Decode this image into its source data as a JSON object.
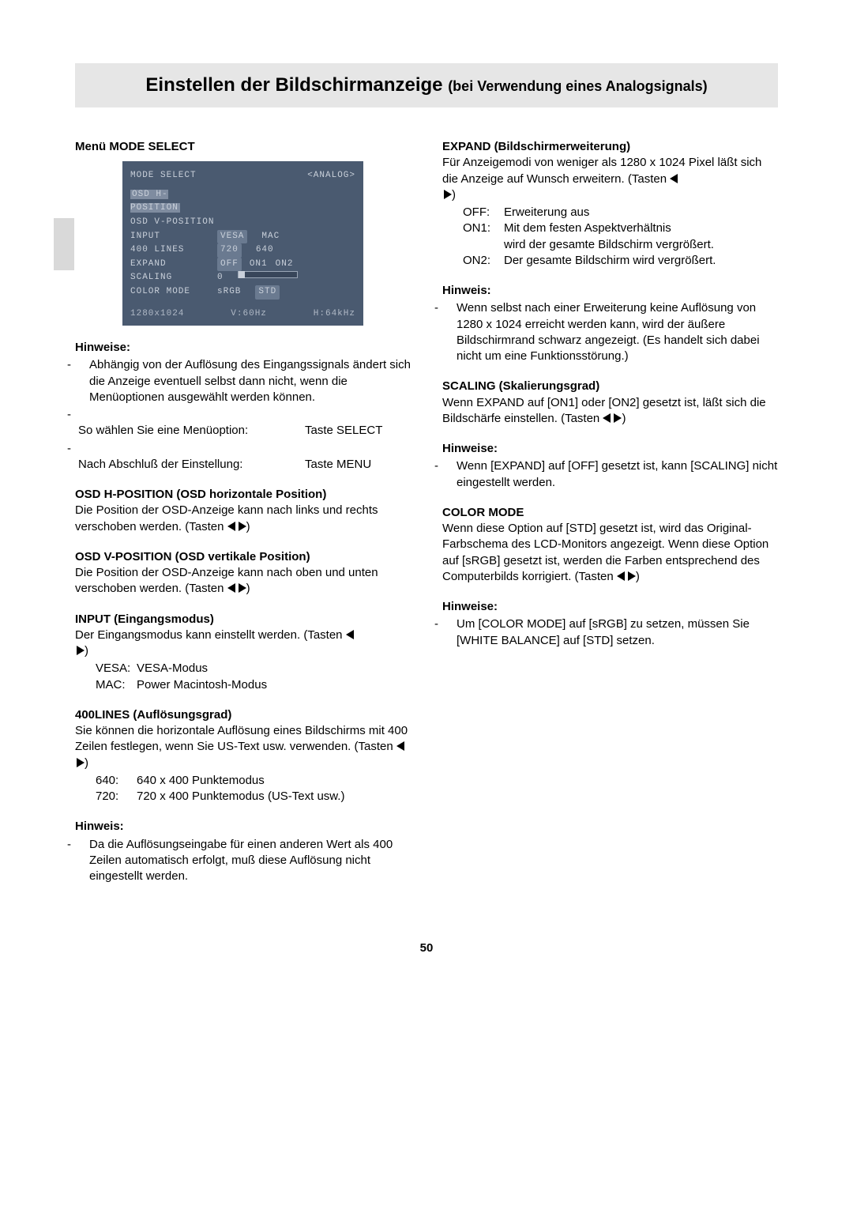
{
  "title": {
    "main": "Einstellen der Bildschirmanzeige ",
    "sub": "(bei Verwendung eines Analogsignals)"
  },
  "osd": {
    "title": "MODE SELECT",
    "mode": "<ANALOG>",
    "rows": {
      "hpos": "OSD H-POSITION",
      "vpos": "OSD V-POSITION",
      "input": "INPUT",
      "input_v1": "VESA",
      "input_v2": "MAC",
      "lines": "400 LINES",
      "lines_v1": "720",
      "lines_v2": "640",
      "expand": "EXPAND",
      "expand_v1": "OFF",
      "expand_v2": "ON1",
      "expand_v3": "ON2",
      "scaling": "SCALING",
      "scaling_v": "0",
      "color": "COLOR MODE",
      "color_v1": "sRGB",
      "color_v2": "STD"
    },
    "footer": {
      "res": "1280x1024",
      "v": "V:60Hz",
      "h": "H:64kHz"
    }
  },
  "left": {
    "menu_head": "Menü MODE SELECT",
    "hinweise": "Hinweise:",
    "hinweis": "Hinweis:",
    "notes1_a": "Abhängig von der Auflösung des Eingangssignals ändert sich die Anzeige eventuell selbst dann nicht, wenn die Menüoptionen ausgewählt werden können.",
    "notes1_b_l": "So wählen Sie eine Menüoption:",
    "notes1_b_r": "Taste SELECT",
    "notes1_c_l": "Nach Abschluß der Einstellung:",
    "notes1_c_r": "Taste MENU",
    "osd_h_head": "OSD H-POSITION (OSD horizontale Position)",
    "osd_h_body": "Die Position der OSD-Anzeige kann nach links und rechts verschoben werden. (Tasten ",
    "osd_v_head": "OSD V-POSITION (OSD vertikale Position)",
    "osd_v_body": "Die Position der OSD-Anzeige kann nach oben und unten verschoben werden. (Tasten ",
    "input_head": "INPUT (Eingangsmodus)",
    "input_body": "Der Eingangsmodus kann einstellt werden. (Tasten ",
    "input_vesa_k": "VESA:",
    "input_vesa_v": "VESA-Modus",
    "input_mac_k": "MAC:",
    "input_mac_v": "Power Macintosh-Modus",
    "l400_head": "400LINES (Auflösungsgrad)",
    "l400_body": "Sie können die horizontale Auflösung eines Bildschirms mit 400 Zeilen festlegen, wenn Sie US-Text usw. verwenden. (Tasten ",
    "l400_640_k": "640:",
    "l400_640_v": "640 x 400 Punktemodus",
    "l400_720_k": "720:",
    "l400_720_v": "720 x 400 Punktemodus (US-Text usw.)",
    "l400_note": "Da die Auflösungseingabe für einen anderen Wert als 400 Zeilen automatisch erfolgt, muß diese Auflösung nicht eingestellt werden."
  },
  "right": {
    "expand_head": "EXPAND (Bildschirmerweiterung)",
    "expand_body": "Für Anzeigemodi von weniger als 1280 x 1024 Pixel läßt sich die Anzeige auf Wunsch erweitern. (Tasten ",
    "expand_off_k": "OFF:",
    "expand_off_v": "Erweiterung aus",
    "expand_on1_k": "ON1:",
    "expand_on1_v1": "Mit dem festen Aspektverhältnis",
    "expand_on1_v2": "wird der gesamte Bildschirm vergrößert.",
    "expand_on2_k": "ON2:",
    "expand_on2_v": "Der gesamte Bildschirm wird vergrößert.",
    "hinweis": "Hinweis:",
    "hinweise": "Hinweise:",
    "expand_note": "Wenn selbst nach einer Erweiterung keine Auflösung von 1280 x 1024 erreicht werden kann, wird der äußere Bildschirmrand schwarz angezeigt. (Es handelt sich dabei nicht um eine Funktionsstörung.)",
    "scaling_head": "SCALING (Skalierungsgrad)",
    "scaling_body": "Wenn EXPAND auf [ON1] oder [ON2] gesetzt ist, läßt sich die Bildschärfe einstellen. (Tasten ",
    "scaling_note": "Wenn [EXPAND] auf [OFF] gesetzt ist, kann [SCALING] nicht eingestellt werden.",
    "color_head": "COLOR MODE",
    "color_body": "Wenn diese Option auf [STD] gesetzt ist, wird das Original-Farbschema des LCD-Monitors angezeigt. Wenn diese Option auf [sRGB] gesetzt ist, werden die Farben entsprechend des Computerbilds korrigiert. (Tasten ",
    "color_note": "Um [COLOR MODE] auf [sRGB] zu setzen, müssen Sie [WHITE BALANCE] auf [STD] setzen."
  },
  "page_num": "50"
}
